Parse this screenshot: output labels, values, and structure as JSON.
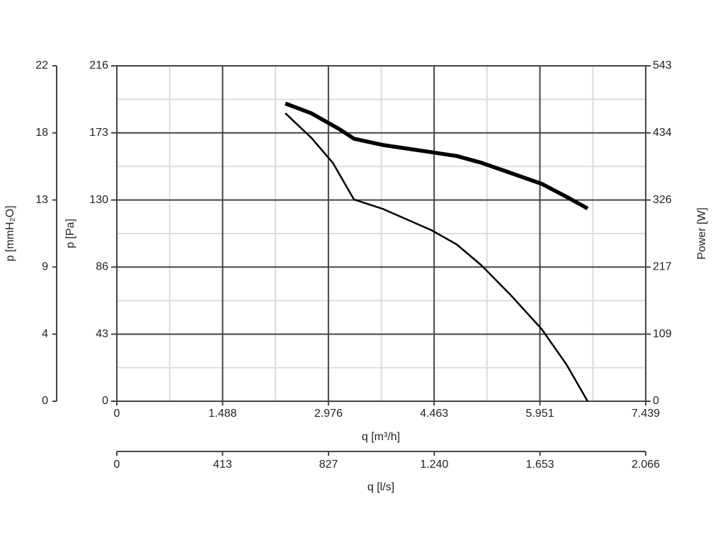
{
  "chart_data": {
    "type": "line",
    "xlabel": "q [m³/h]",
    "ylabel": "p [Pa]",
    "y2label": "Power [W]",
    "xlim": [
      0,
      7439
    ],
    "xticks": [
      0,
      {
        "value": 1488,
        "label": "1.488"
      },
      {
        "value": 2976,
        "label": "2.976"
      },
      {
        "value": 4463,
        "label": "4.463"
      },
      {
        "value": 5951,
        "label": "5.951"
      },
      {
        "value": 7439,
        "label": "7.439"
      }
    ],
    "xminor": [
      744,
      2232,
      3720,
      5207,
      6695
    ],
    "ylim": [
      0,
      216
    ],
    "yticks": [
      0,
      {
        "value": 43.2,
        "label": "43"
      },
      {
        "value": 86.4,
        "label": "86"
      },
      {
        "value": 129.6,
        "label": "130"
      },
      {
        "value": 172.8,
        "label": "173"
      },
      216
    ],
    "yminor": [
      21.6,
      64.8,
      108,
      151.2,
      194.4
    ],
    "y2lim": [
      0,
      543
    ],
    "y2ticks": [
      0,
      {
        "value": 108.6,
        "label": "109"
      },
      {
        "value": 217.2,
        "label": "217"
      },
      {
        "value": 325.8,
        "label": "326"
      },
      {
        "value": 434.4,
        "label": "434"
      },
      543
    ],
    "y_alt": {
      "label": "p [mmH₂O]",
      "lim": [
        0,
        22
      ],
      "ticks": [
        0,
        {
          "value": 4.4,
          "label": "4"
        },
        {
          "value": 8.8,
          "label": "9"
        },
        {
          "value": 13.2,
          "label": "13"
        },
        {
          "value": 17.6,
          "label": "18"
        },
        22
      ]
    },
    "x_alt": {
      "label": "q [l/s]",
      "lim": [
        0,
        2066
      ],
      "ticks": [
        0,
        413,
        827,
        {
          "value": 1240,
          "label": "1.240"
        },
        {
          "value": 1653,
          "label": "1.653"
        },
        {
          "value": 2066,
          "label": "2.066"
        }
      ]
    },
    "grid": true,
    "series": [
      {
        "color": "#000000",
        "width": 2.5,
        "x": [
          2370,
          2739,
          3037,
          3336,
          3734,
          4083,
          4432,
          4780,
          5129,
          5527,
          5975,
          6324,
          6622
        ],
        "values": [
          185.5,
          169.5,
          153.6,
          129.9,
          124,
          117,
          110,
          101,
          87.5,
          69,
          46.5,
          23.7,
          0
        ]
      },
      {
        "color": "#000000",
        "width": 5.5,
        "axis": "y2",
        "x": [
          2370,
          2739,
          3137,
          3336,
          3734,
          4083,
          4432,
          4780,
          5129,
          5527,
          5975,
          6324,
          6622
        ],
        "values": [
          482,
          466,
          440,
          425,
          415,
          409,
          403,
          397,
          386,
          370,
          352,
          331,
          312
        ]
      }
    ]
  }
}
